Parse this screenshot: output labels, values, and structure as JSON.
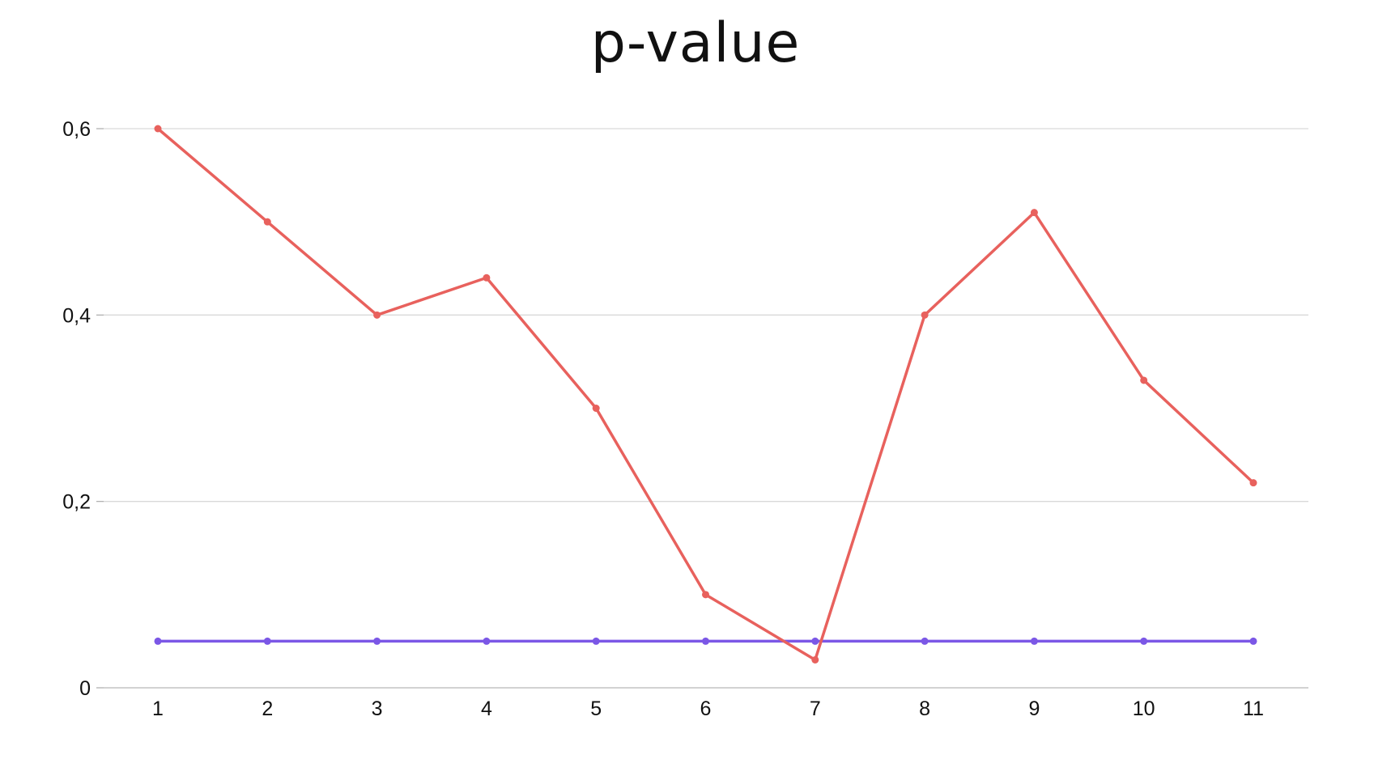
{
  "chart_data": {
    "type": "line",
    "title": "p-value",
    "xlabel": "",
    "ylabel": "",
    "x": [
      1,
      2,
      3,
      4,
      5,
      6,
      7,
      8,
      9,
      10,
      11
    ],
    "x_tick_labels": [
      "1",
      "2",
      "3",
      "4",
      "5",
      "6",
      "7",
      "8",
      "9",
      "10",
      "11"
    ],
    "y_tick_labels": [
      "0",
      "0,2",
      "0,4",
      "0,6"
    ],
    "y_ticks": [
      0,
      0.2,
      0.4,
      0.6
    ],
    "ylim": [
      0,
      0.6
    ],
    "grid": true,
    "legend": "none",
    "series": [
      {
        "values": [
          0.6,
          0.5,
          0.4,
          0.44,
          0.3,
          0.1,
          0.03,
          0.4,
          0.51,
          0.33,
          0.22
        ],
        "color": "#e8615d"
      },
      {
        "values": [
          0.05,
          0.05,
          0.05,
          0.05,
          0.05,
          0.05,
          0.05,
          0.05,
          0.05,
          0.05,
          0.05
        ],
        "color": "#7b57e6"
      }
    ]
  }
}
